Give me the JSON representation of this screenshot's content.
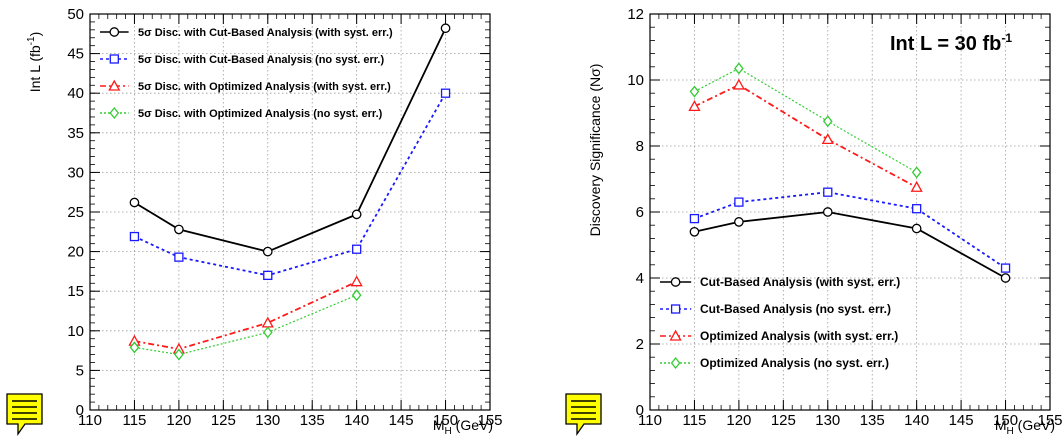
{
  "chart_data": [
    {
      "type": "line",
      "title": "",
      "ylabel_main": "Int L (fb",
      "ylabel_sup": "-1",
      "ylabel_end": ")",
      "xlabel_main": "M",
      "xlabel_sub": "H",
      "xlabel_end": " (GeV)",
      "xlim": [
        110,
        155
      ],
      "ylim": [
        0,
        50
      ],
      "xticks": [
        110,
        115,
        120,
        125,
        130,
        135,
        140,
        145,
        150,
        155
      ],
      "yticks": [
        0,
        5,
        10,
        15,
        20,
        25,
        30,
        35,
        40,
        45,
        50
      ],
      "grid": true,
      "legend_position": "top-left",
      "series": [
        {
          "name": "5σ Disc. with Cut-Based Analysis (with syst. err.)",
          "color": "#000000",
          "marker": "circle",
          "dash": "",
          "x": [
            115,
            120,
            130,
            140,
            150
          ],
          "y": [
            26.2,
            22.8,
            20.0,
            24.7,
            48.2
          ]
        },
        {
          "name": "5σ Disc. with Cut-Based Analysis (no syst. err.)",
          "color": "#1a1aff",
          "marker": "square",
          "dash": "3 3",
          "x": [
            115,
            120,
            130,
            140,
            150
          ],
          "y": [
            21.9,
            19.3,
            17.0,
            20.3,
            40.0
          ]
        },
        {
          "name": "5σ Disc. with Optimized Analysis (with syst. err.)",
          "color": "#ff1a1a",
          "marker": "triangle",
          "dash": "6 3 2 3",
          "x": [
            115,
            120,
            130,
            140
          ],
          "y": [
            8.7,
            7.7,
            11.0,
            16.2
          ]
        },
        {
          "name": "5σ Disc. with Optimized Analysis (no syst. err.)",
          "color": "#33cc33",
          "marker": "diamond",
          "dash": "2 2",
          "x": [
            115,
            120,
            130,
            140
          ],
          "y": [
            7.9,
            7.0,
            9.8,
            14.5
          ]
        }
      ]
    },
    {
      "type": "line",
      "title": "",
      "annotation_main": "Int L = 30 fb",
      "annotation_sup": "-1",
      "ylabel_main": "Discovery Significance (Nσ)",
      "xlabel_main": "M",
      "xlabel_sub": "H",
      "xlabel_end": " (GeV)",
      "xlim": [
        110,
        155
      ],
      "ylim": [
        0,
        12
      ],
      "xticks": [
        110,
        115,
        120,
        125,
        130,
        135,
        140,
        145,
        150,
        155
      ],
      "yticks": [
        0,
        2,
        4,
        6,
        8,
        10,
        12
      ],
      "grid": true,
      "legend_position": "bottom-left",
      "series": [
        {
          "name": "Cut-Based Analysis (with syst. err.)",
          "color": "#000000",
          "marker": "circle",
          "dash": "",
          "x": [
            115,
            120,
            130,
            140,
            150
          ],
          "y": [
            5.4,
            5.7,
            6.0,
            5.5,
            4.0
          ]
        },
        {
          "name": "Cut-Based Analysis (no syst. err.)",
          "color": "#1a1aff",
          "marker": "square",
          "dash": "3 3",
          "x": [
            115,
            120,
            130,
            140,
            150
          ],
          "y": [
            5.8,
            6.3,
            6.6,
            6.1,
            4.3
          ]
        },
        {
          "name": "Optimized Analysis (with syst. err.)",
          "color": "#ff1a1a",
          "marker": "triangle",
          "dash": "6 3 2 3",
          "x": [
            115,
            120,
            130,
            140
          ],
          "y": [
            9.2,
            9.85,
            8.2,
            6.75
          ]
        },
        {
          "name": "Optimized Analysis (no syst. err.)",
          "color": "#33cc33",
          "marker": "diamond",
          "dash": "2 2",
          "x": [
            115,
            120,
            130,
            140
          ],
          "y": [
            9.65,
            10.35,
            8.75,
            7.2
          ]
        }
      ]
    }
  ],
  "note_icon_color": "#ffff00"
}
